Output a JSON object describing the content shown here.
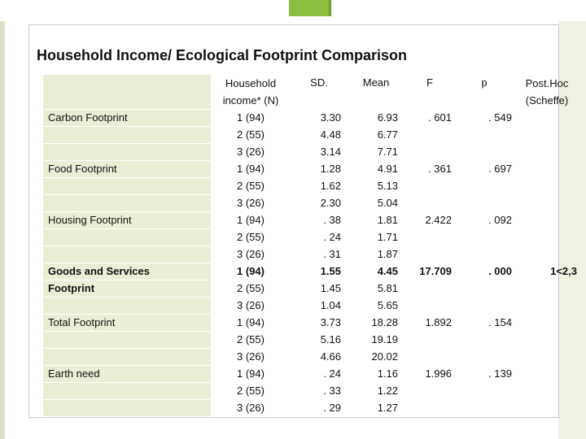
{
  "title": "Household Income/ Ecological Footprint Comparison",
  "headers": {
    "label": "",
    "household": "Household income* (N)",
    "sd": "SD.",
    "mean": "Mean",
    "f": "F",
    "p": "p",
    "posthoc": "Post.Hoc (Scheffe)"
  },
  "rows": [
    {
      "label": "Carbon Footprint",
      "n": "1 (94)",
      "sd": "3.30",
      "mean": "6.93",
      "f": ". 601",
      "p": ". 549",
      "posthoc": ""
    },
    {
      "label": "",
      "n": "2 (55)",
      "sd": "4.48",
      "mean": "6.77",
      "f": "",
      "p": "",
      "posthoc": ""
    },
    {
      "label": "",
      "n": "3 (26)",
      "sd": "3.14",
      "mean": "7.71",
      "f": "",
      "p": "",
      "posthoc": ""
    },
    {
      "label": "Food Footprint",
      "n": "1 (94)",
      "sd": "1.28",
      "mean": "4.91",
      "f": ". 361",
      "p": ". 697",
      "posthoc": ""
    },
    {
      "label": "",
      "n": "2 (55)",
      "sd": "1.62",
      "mean": "5.13",
      "f": "",
      "p": "",
      "posthoc": ""
    },
    {
      "label": "",
      "n": "3 (26)",
      "sd": "2.30",
      "mean": "5.04",
      "f": "",
      "p": "",
      "posthoc": ""
    },
    {
      "label": "Housing Footprint",
      "n": "1 (94)",
      "sd": ". 38",
      "mean": "1.81",
      "f": "2.422",
      "p": ". 092",
      "posthoc": ""
    },
    {
      "label": "",
      "n": "2 (55)",
      "sd": ". 24",
      "mean": "1.71",
      "f": "",
      "p": "",
      "posthoc": ""
    },
    {
      "label": "",
      "n": "3 (26)",
      "sd": ". 31",
      "mean": "1.87",
      "f": "",
      "p": "",
      "posthoc": ""
    },
    {
      "label": "Goods and Services",
      "n": "1 (94)",
      "sd": "1.55",
      "mean": "4.45",
      "f": "17.709",
      "p": ". 000",
      "posthoc": "1<2,3",
      "bold": true
    },
    {
      "label": "Footprint",
      "n": "2 (55)",
      "sd": "1.45",
      "mean": "5.81",
      "f": "",
      "p": "",
      "posthoc": "",
      "boldLabel": true
    },
    {
      "label": "",
      "n": "3 (26)",
      "sd": "1.04",
      "mean": "5.65",
      "f": "",
      "p": "",
      "posthoc": ""
    },
    {
      "label": "Total Footprint",
      "n": "1 (94)",
      "sd": "3.73",
      "mean": "18.28",
      "f": "1.892",
      "p": ". 154",
      "posthoc": ""
    },
    {
      "label": "",
      "n": "2 (55)",
      "sd": "5.16",
      "mean": "19.19",
      "f": "",
      "p": "",
      "posthoc": ""
    },
    {
      "label": "",
      "n": "3 (26)",
      "sd": "4.66",
      "mean": "20.02",
      "f": "",
      "p": "",
      "posthoc": ""
    },
    {
      "label": "Earth need",
      "n": "1 (94)",
      "sd": ". 24",
      "mean": "1.16",
      "f": "1.996",
      "p": ". 139",
      "posthoc": ""
    },
    {
      "label": "",
      "n": "2 (55)",
      "sd": ". 33",
      "mean": "1.22",
      "f": "",
      "p": "",
      "posthoc": ""
    },
    {
      "label": "",
      "n": "3 (26)",
      "sd": ". 29",
      "mean": "1.27",
      "f": "",
      "p": "",
      "posthoc": ""
    }
  ],
  "colors": {
    "accent": "#8cbf3f",
    "cell_green": "#e9efd6"
  }
}
